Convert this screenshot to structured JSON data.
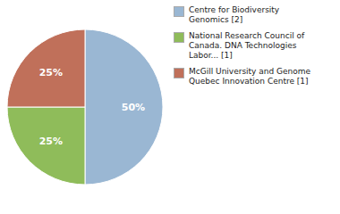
{
  "chart_data": {
    "type": "pie",
    "categories": [
      "Centre for Biodiversity\nGenomics [2]",
      "National Research Council of\nCanada. DNA Technologies\nLabor... [1]",
      "McGill University and Genome\nQuebec Innovation Centre [1]"
    ],
    "values": [
      50,
      25,
      25
    ],
    "value_labels": [
      "50%",
      "25%",
      "25%"
    ],
    "colors": [
      "#9ab7d3",
      "#8fbc5a",
      "#c0705a"
    ],
    "data_labels": true,
    "legend": "right"
  }
}
